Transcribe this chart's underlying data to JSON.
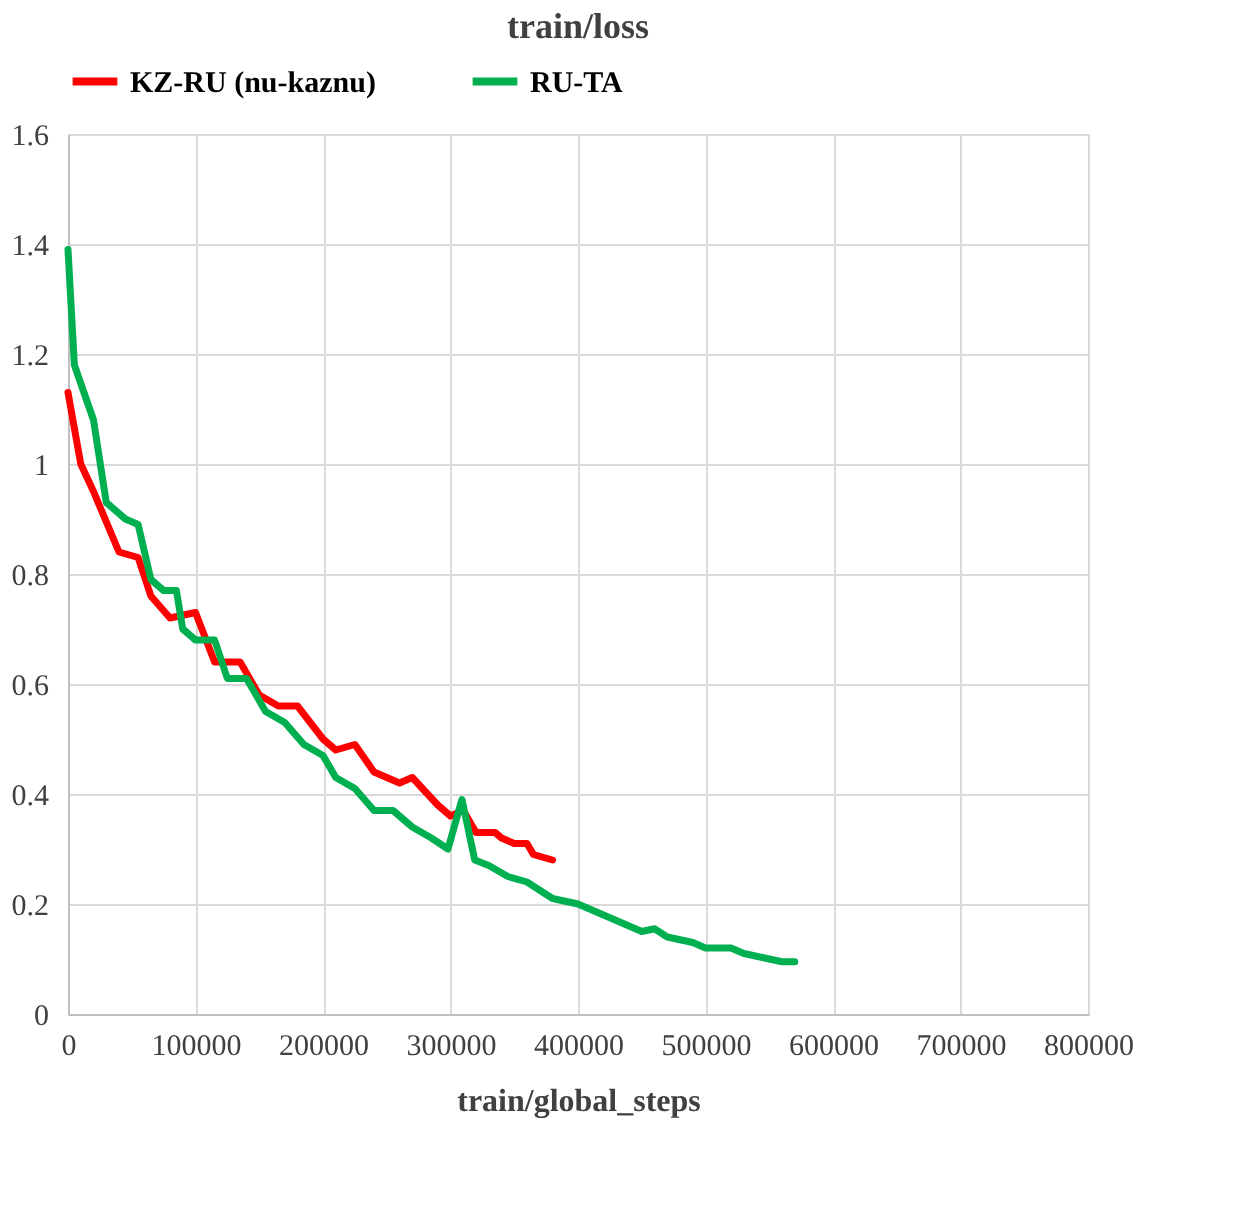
{
  "chart_data": {
    "type": "line",
    "title": "train/loss",
    "xlabel": "train/global_steps",
    "xlim": [
      0,
      800000
    ],
    "xticks": [
      0,
      100000,
      200000,
      300000,
      400000,
      500000,
      600000,
      700000,
      800000
    ],
    "ylim": [
      0,
      1.6
    ],
    "yticks": [
      0,
      0.2,
      0.4,
      0.6,
      0.8,
      1,
      1.2,
      1.4,
      1.6
    ],
    "grid": true,
    "legend": "top",
    "marker": "none",
    "line_style": "solid",
    "series": [
      {
        "name": "KZ-RU (nu-kaznu)",
        "color": "#ff0000",
        "x": [
          0,
          10000,
          20000,
          40000,
          55000,
          65000,
          80000,
          100000,
          115000,
          135000,
          150000,
          165000,
          180000,
          200000,
          210000,
          225000,
          240000,
          260000,
          270000,
          290000,
          300000,
          310000,
          320000,
          335000,
          340000,
          350000,
          360000,
          365000,
          380000
        ],
        "values": [
          1.13,
          1.0,
          0.95,
          0.84,
          0.83,
          0.76,
          0.72,
          0.73,
          0.64,
          0.64,
          0.58,
          0.56,
          0.56,
          0.5,
          0.48,
          0.49,
          0.44,
          0.42,
          0.43,
          0.38,
          0.36,
          0.37,
          0.33,
          0.33,
          0.32,
          0.31,
          0.31,
          0.29,
          0.28
        ]
      },
      {
        "name": "RU-TA",
        "color": "#00b050",
        "x": [
          0,
          5000,
          20000,
          30000,
          45000,
          55000,
          65000,
          75000,
          85000,
          90000,
          100000,
          115000,
          125000,
          140000,
          155000,
          170000,
          185000,
          200000,
          210000,
          225000,
          240000,
          255000,
          270000,
          285000,
          298000,
          309000,
          319000,
          330000,
          345000,
          360000,
          380000,
          400000,
          410000,
          430000,
          450000,
          460000,
          470000,
          490000,
          500000,
          520000,
          530000,
          550000,
          560000,
          570000
        ],
        "values": [
          1.39,
          1.18,
          1.08,
          0.93,
          0.9,
          0.89,
          0.79,
          0.77,
          0.77,
          0.7,
          0.68,
          0.68,
          0.61,
          0.61,
          0.55,
          0.53,
          0.49,
          0.47,
          0.43,
          0.41,
          0.37,
          0.37,
          0.34,
          0.32,
          0.3,
          0.39,
          0.28,
          0.27,
          0.25,
          0.24,
          0.21,
          0.2,
          0.19,
          0.17,
          0.15,
          0.155,
          0.14,
          0.13,
          0.12,
          0.12,
          0.11,
          0.1,
          0.095,
          0.095
        ]
      }
    ]
  }
}
